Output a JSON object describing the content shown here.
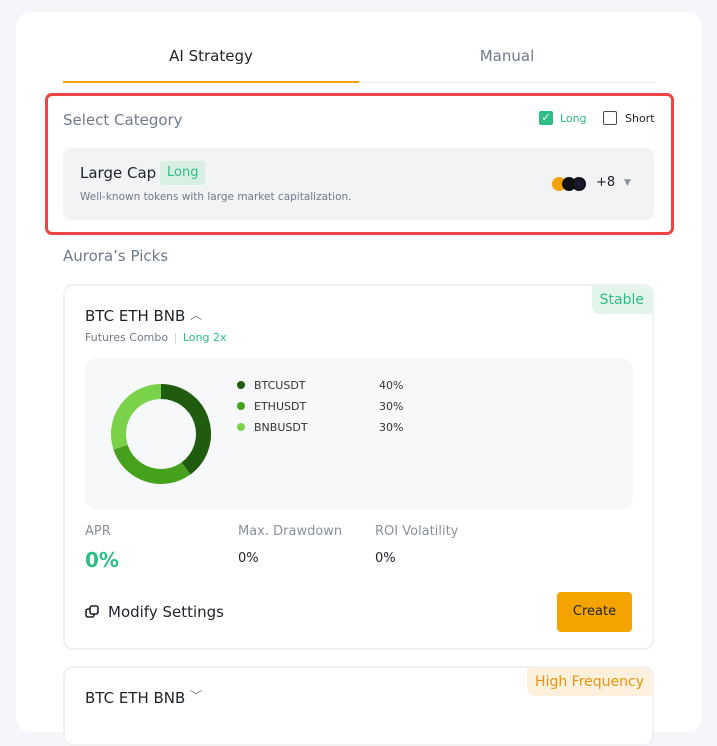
{
  "tabs": [
    {
      "label": "AI Strategy",
      "active": true
    },
    {
      "label": "Manual",
      "active": false
    }
  ],
  "category": {
    "title": "Select Category",
    "filters": [
      {
        "label": "Long",
        "checked": true
      },
      {
        "label": "Short",
        "checked": false
      }
    ],
    "selected": {
      "name": "Large Cap",
      "badge": "Long",
      "description": "Well-known tokens with large market capitalization.",
      "coin_icons": [
        "btc-icon",
        "eth-icon",
        "sol-icon"
      ],
      "more_count": "+8"
    }
  },
  "picks_title": "Aurora’s Picks",
  "cards": [
    {
      "title": "BTC ETH BNB",
      "tag": "Stable",
      "type": "Futures Combo",
      "direction": "Long 2x",
      "stats": [
        {
          "label": "APR",
          "value": "0%"
        },
        {
          "label": "Max. Drawdown",
          "value": "0%"
        },
        {
          "label": "ROI Volatility",
          "value": "0%"
        }
      ],
      "modify_label": "Modify Settings",
      "create_label": "Create"
    },
    {
      "title": "BTC ETH BNB",
      "tag": "High Frequency"
    }
  ],
  "chart_data": {
    "type": "pie",
    "style": "donut",
    "categories": [
      "BTCUSDT",
      "ETHUSDT",
      "BNBUSDT"
    ],
    "values": [
      40,
      30,
      30
    ],
    "labels": [
      "40%",
      "30%",
      "30%"
    ],
    "colors": [
      "#1f5c0f",
      "#46a21d",
      "#7ad14a"
    ]
  },
  "colors": {
    "accent": "#f0a30a",
    "green": "#2ebd85",
    "tag_orange": "#e8940f"
  }
}
